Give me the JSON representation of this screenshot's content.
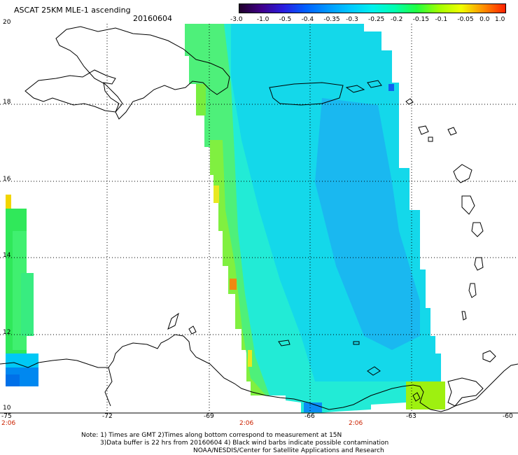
{
  "header": {
    "title": "ASCAT 25KM MLE-1 ascending",
    "date": "20160604"
  },
  "colorbar": {
    "labels": [
      "-3.0",
      "-1.0",
      "-0.5",
      "-0.4",
      "-0.35",
      "-0.3",
      "-0.25",
      "-0.2",
      "-0.15",
      "-0.1",
      "-0.05",
      "0.0",
      "1.0"
    ],
    "colors": [
      "#20002a",
      "#40008a",
      "#2a1de0",
      "#0060ff",
      "#0098ff",
      "#00c8ff",
      "#00f0ee",
      "#00ffb0",
      "#20ff40",
      "#a0ff00",
      "#f0ff00",
      "#ff9000",
      "#ff2000"
    ]
  },
  "axes": {
    "lat_labels": [
      "20",
      "18",
      "16",
      "14",
      "12",
      "10"
    ],
    "lon_labels": [
      "-75",
      "-72",
      "-69",
      "-66",
      "-63",
      "-60"
    ],
    "time_labels": [
      "2:06",
      "2:06",
      "2:06"
    ]
  },
  "notes": {
    "line1": "Note: 1) Times are GMT 2)Times along bottom correspond to measurement at 15N",
    "line2": "3)Data buffer is 22 hrs from 20160604 4) Black wind barbs indicate possible contamination",
    "line3": "NOAA/NESDIS/Center for Satellite Applications and Research"
  }
}
